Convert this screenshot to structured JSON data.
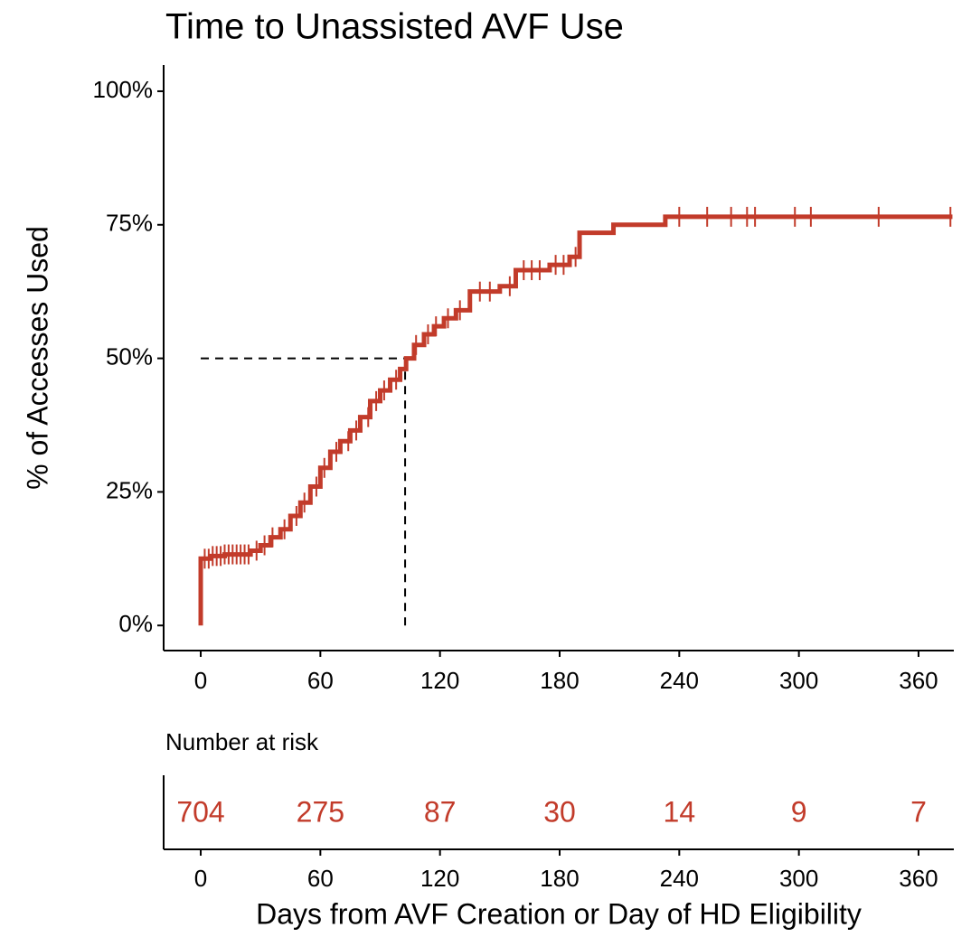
{
  "chart_data": {
    "type": "step",
    "title": "Time to Unassisted AVF Use",
    "y_label": "% of Accesses Used",
    "x_label": "Days from AVF Creation or Day of HD Eligibility",
    "color": "#C23B2A",
    "x": [
      0,
      0,
      5,
      12,
      25,
      30,
      35,
      40,
      45,
      50,
      55,
      60,
      65,
      70,
      75,
      80,
      85,
      90,
      95,
      100,
      103,
      107,
      112,
      117,
      122,
      128,
      135,
      150,
      158,
      175,
      185,
      190,
      207,
      233,
      377
    ],
    "values": [
      0,
      12.5,
      13,
      13.3,
      14,
      15,
      16.5,
      18,
      20.5,
      23,
      26,
      29.5,
      32.5,
      34.5,
      36.5,
      39,
      42,
      44,
      46,
      48,
      50,
      52.5,
      54.5,
      56,
      57.5,
      59,
      62.5,
      63.5,
      66.5,
      67.5,
      69,
      73.5,
      75,
      76.5,
      76.5
    ],
    "censor_x": [
      2,
      4,
      6,
      8,
      10,
      12,
      14,
      16,
      18,
      20,
      22,
      24,
      28,
      32,
      36,
      42,
      48,
      52,
      58,
      62,
      68,
      74,
      78,
      84,
      88,
      92,
      98,
      108,
      114,
      118,
      124,
      130,
      140,
      145,
      155,
      162,
      166,
      170,
      178,
      182,
      188,
      240,
      254,
      266,
      274,
      278,
      298,
      306,
      340,
      376
    ],
    "median": {
      "x": 102.5,
      "y": 50
    },
    "xlim": [
      -18.6,
      377.7
    ],
    "ylim": [
      -4.7,
      104.9
    ],
    "xticks": [
      0,
      60,
      120,
      180,
      240,
      300,
      360
    ],
    "yticks": [
      {
        "value": 0,
        "label": "0%"
      },
      {
        "value": 25,
        "label": "25%"
      },
      {
        "value": 50,
        "label": "50%"
      },
      {
        "value": 75,
        "label": "75%"
      },
      {
        "value": 100,
        "label": "100%"
      }
    ],
    "risk_table": {
      "title": "Number at risk",
      "times": [
        0,
        60,
        120,
        180,
        240,
        300,
        360
      ],
      "values": [
        704,
        275,
        87,
        30,
        14,
        9,
        7
      ]
    }
  }
}
